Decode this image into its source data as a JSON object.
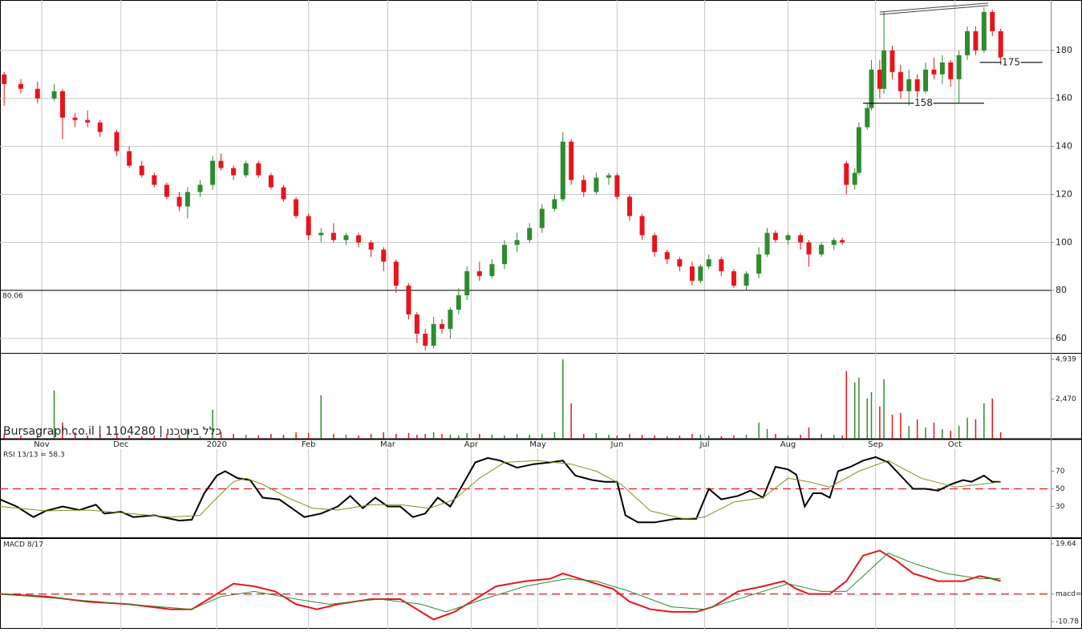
{
  "chart_data": {
    "type": "candlestick",
    "watermark": "Bursagraph.co.il | 1104280 | כלל ביוטכנו",
    "xlim": [
      -1,
      251
    ],
    "xticks": [
      {
        "value": 9,
        "label": "Nov"
      },
      {
        "value": 28,
        "label": "Dec"
      },
      {
        "value": 51,
        "label": "2020"
      },
      {
        "value": 73,
        "label": "Feb"
      },
      {
        "value": 92,
        "label": "Mar"
      },
      {
        "value": 112,
        "label": "Apr"
      },
      {
        "value": 128,
        "label": "May"
      },
      {
        "value": 147,
        "label": "Jun"
      },
      {
        "value": 168,
        "label": "Jul"
      },
      {
        "value": 188,
        "label": "Aug"
      },
      {
        "value": 209,
        "label": "Sep"
      },
      {
        "value": 228,
        "label": "Oct"
      }
    ],
    "grid": true,
    "price": {
      "ylim": [
        54,
        201
      ],
      "yticks": [
        60,
        80,
        100,
        120,
        140,
        160,
        180
      ],
      "up_color": "#2e8b2e",
      "down_color": "#e8141c",
      "reference_line": 80.06,
      "support_lines": [
        {
          "value": 158,
          "x": [
            206,
            235
          ]
        },
        {
          "value": 175,
          "x": [
            234,
            249
          ]
        }
      ],
      "trend_line": {
        "x": [
          210,
          236
        ],
        "y": [
          196,
          199.7
        ]
      },
      "candles": {
        "x": [
          0,
          4,
          8,
          12,
          14,
          17,
          20,
          23,
          27,
          30,
          33,
          36,
          39,
          42,
          44,
          47,
          50,
          52,
          55,
          58,
          61,
          64,
          67,
          70,
          73,
          76,
          79,
          82,
          85,
          88,
          91,
          94,
          97,
          99,
          101,
          103,
          105,
          107,
          109,
          111,
          114,
          117,
          120,
          123,
          126,
          129,
          132,
          134,
          136,
          139,
          142,
          145,
          147,
          150,
          153,
          156,
          159,
          162,
          165,
          167,
          169,
          172,
          175,
          178,
          181,
          183,
          185,
          188,
          191,
          193,
          196,
          199,
          201,
          202,
          204,
          205,
          207,
          208,
          210,
          211,
          213,
          215,
          217,
          219,
          221,
          223,
          225,
          227,
          229,
          231,
          233,
          235,
          237,
          239
        ],
        "open": [
          170,
          166,
          164,
          160,
          163,
          152,
          151,
          150,
          146,
          138,
          132,
          128,
          124,
          119,
          115,
          121,
          124,
          134,
          131,
          128,
          133,
          128,
          123,
          118,
          111,
          103,
          104,
          101,
          103,
          100,
          97,
          92,
          82,
          70,
          62,
          57,
          66,
          64,
          72,
          78,
          88,
          86,
          91,
          99,
          101,
          106,
          114,
          118,
          142,
          126,
          121,
          127,
          128,
          119,
          111,
          103,
          96,
          93,
          90,
          84,
          90,
          93,
          88,
          82,
          87,
          95,
          104,
          101,
          103,
          100,
          95,
          99,
          101,
          133,
          124,
          129,
          148,
          156,
          172,
          164,
          180,
          171,
          163,
          168,
          163,
          172,
          170,
          175,
          168,
          178,
          188,
          180,
          196,
          188
        ],
        "high": [
          171,
          168,
          167,
          166,
          164,
          154,
          155,
          151,
          147,
          140,
          134,
          129,
          125,
          121,
          123,
          126,
          136,
          137,
          132,
          134,
          134,
          129,
          124,
          119,
          112,
          106,
          108,
          104,
          104,
          101,
          98,
          93,
          83,
          71,
          64,
          69,
          68,
          73,
          81,
          90,
          92,
          93,
          101,
          104,
          108,
          116,
          120,
          146,
          143,
          128,
          129,
          129,
          129,
          120,
          112,
          104,
          97,
          94,
          92,
          91,
          95,
          94,
          89,
          88,
          98,
          106,
          105,
          104,
          104,
          101,
          100,
          102,
          102,
          134,
          131,
          150,
          158,
          176,
          176,
          196,
          182,
          174,
          172,
          170,
          175,
          177,
          178,
          176,
          180,
          190,
          190,
          198,
          197,
          189
        ],
        "low": [
          157,
          162,
          158,
          159,
          143,
          148,
          148,
          144,
          136,
          131,
          127,
          123,
          118,
          113,
          110,
          119,
          122,
          130,
          126,
          127,
          127,
          122,
          117,
          110,
          101,
          100,
          100,
          99,
          98,
          94,
          88,
          79,
          68,
          58,
          55,
          56,
          62,
          60,
          70,
          76,
          84,
          85,
          89,
          96,
          100,
          104,
          113,
          117,
          124,
          119,
          120,
          124,
          118,
          109,
          101,
          94,
          91,
          88,
          82,
          83,
          89,
          86,
          81,
          80,
          85,
          94,
          100,
          99,
          97,
          90,
          94,
          97,
          99,
          120,
          122,
          128,
          147,
          155,
          160,
          162,
          168,
          160,
          157,
          160,
          162,
          168,
          166,
          165,
          158,
          176,
          178,
          179,
          186,
          174
        ],
        "close": [
          166,
          164,
          160,
          163,
          152,
          151,
          150,
          146,
          138,
          132,
          128,
          124,
          119,
          115,
          121,
          124,
          134,
          131,
          128,
          133,
          128,
          123,
          118,
          111,
          103,
          104,
          101,
          103,
          100,
          97,
          92,
          82,
          70,
          62,
          57,
          66,
          64,
          72,
          78,
          88,
          86,
          91,
          99,
          101,
          106,
          114,
          118,
          142,
          126,
          121,
          127,
          128,
          119,
          111,
          103,
          96,
          93,
          90,
          84,
          90,
          93,
          88,
          82,
          87,
          95,
          104,
          101,
          103,
          100,
          95,
          99,
          101,
          100,
          124,
          129,
          148,
          156,
          172,
          164,
          180,
          171,
          163,
          168,
          163,
          172,
          170,
          175,
          168,
          178,
          188,
          180,
          196,
          188,
          177
        ]
      }
    },
    "volume": {
      "ylim": [
        0,
        5338
      ],
      "yticks": [
        {
          "value": 2470,
          "label": "2,470"
        },
        {
          "value": 4939,
          "label": "4,939"
        }
      ],
      "values": [
        300,
        200,
        250,
        3000,
        1000,
        400,
        200,
        300,
        250,
        200,
        150,
        200,
        300,
        250,
        600,
        150,
        1800,
        400,
        300,
        250,
        200,
        300,
        250,
        400,
        350,
        2700,
        300,
        250,
        200,
        300,
        400,
        300,
        350,
        250,
        300,
        400,
        300,
        250,
        200,
        350,
        300,
        250,
        200,
        300,
        250,
        300,
        400,
        4939,
        2200,
        300,
        350,
        250,
        200,
        300,
        250,
        200,
        150,
        200,
        300,
        250,
        200,
        150,
        200,
        250,
        1000,
        600,
        300,
        200,
        250,
        700,
        300,
        250,
        200,
        4200,
        3500,
        3800,
        2500,
        2900,
        2000,
        3700,
        1500,
        1600,
        800,
        1200,
        700,
        1000,
        600,
        500,
        800,
        1300,
        1200,
        2200,
        2500,
        400
      ]
    },
    "rsi": {
      "title": "RSI 13/13 = 58.3",
      "ylim": [
        -5,
        95
      ],
      "yticks": [
        30,
        50,
        70
      ],
      "reference": 50,
      "series": [
        {
          "color": "#000000",
          "x": [
            -1,
            3,
            7,
            10,
            14,
            18,
            22,
            24,
            28,
            31,
            36,
            42,
            45,
            48,
            51,
            53,
            56,
            59,
            62,
            66,
            69,
            72,
            76,
            80,
            83,
            86,
            89,
            92,
            95,
            98,
            101,
            104,
            107,
            110,
            113,
            116,
            119,
            123,
            127,
            131,
            134,
            137,
            141,
            144,
            147,
            149,
            152,
            156,
            161,
            166,
            169,
            172,
            176,
            179,
            182,
            185,
            188,
            190,
            192,
            194,
            196,
            198,
            200,
            203,
            206,
            209,
            212,
            215,
            218,
            221,
            224,
            227,
            230,
            232,
            235,
            237,
            239
          ],
          "values": [
            38,
            30,
            18,
            25,
            30,
            26,
            32,
            22,
            24,
            18,
            20,
            14,
            15,
            45,
            65,
            70,
            62,
            60,
            40,
            38,
            28,
            18,
            22,
            30,
            42,
            28,
            40,
            30,
            30,
            18,
            22,
            40,
            30,
            55,
            80,
            85,
            82,
            74,
            78,
            80,
            82,
            65,
            60,
            58,
            58,
            20,
            12,
            12,
            16,
            16,
            50,
            38,
            42,
            48,
            40,
            75,
            72,
            66,
            30,
            45,
            45,
            40,
            70,
            75,
            82,
            86,
            80,
            65,
            50,
            50,
            48,
            55,
            60,
            58,
            65,
            58,
            58
          ]
        },
        {
          "color": "#8b8b1e",
          "x": [
            -1,
            10,
            20,
            30,
            40,
            47,
            50,
            55,
            58,
            62,
            68,
            74,
            80,
            88,
            95,
            102,
            108,
            114,
            120,
            128,
            136,
            142,
            148,
            155,
            163,
            168,
            175,
            182,
            188,
            193,
            198,
            205,
            212,
            220,
            228,
            234,
            239
          ],
          "values": [
            30,
            25,
            26,
            22,
            18,
            20,
            35,
            58,
            62,
            55,
            40,
            28,
            26,
            32,
            32,
            28,
            38,
            62,
            80,
            82,
            78,
            70,
            55,
            25,
            16,
            18,
            35,
            40,
            62,
            58,
            52,
            70,
            82,
            62,
            52,
            55,
            58
          ]
        }
      ]
    },
    "macd": {
      "title": "MACD 8/17",
      "ylim": [
        -13.6,
        21.5
      ],
      "yticks": [
        -10.78,
        {
          "value": 0,
          "label": "macd=0"
        },
        19.64
      ],
      "reference": 0,
      "series": [
        {
          "color": "#e8141c",
          "x": [
            -1,
            10,
            20,
            30,
            40,
            45,
            50,
            55,
            60,
            65,
            70,
            75,
            80,
            88,
            95,
            100,
            103,
            108,
            112,
            118,
            125,
            131,
            134,
            140,
            146,
            150,
            155,
            160,
            166,
            170,
            176,
            182,
            187,
            190,
            193,
            198,
            202,
            206,
            210,
            214,
            218,
            224,
            230,
            234,
            237,
            239
          ],
          "values": [
            0,
            -1,
            -3,
            -4,
            -6,
            -6,
            -1,
            4,
            3,
            1,
            -4,
            -6,
            -4,
            -2,
            -2,
            -7,
            -10,
            -7,
            -3,
            3,
            5,
            6,
            8,
            5,
            2,
            -3,
            -6,
            -7,
            -7,
            -5,
            1,
            3,
            5,
            2,
            0,
            0,
            5,
            15,
            17,
            13,
            8,
            5,
            5,
            7,
            6,
            5
          ]
        },
        {
          "color": "#2e8b2e",
          "x": [
            -1,
            15,
            30,
            45,
            52,
            60,
            70,
            78,
            90,
            100,
            106,
            115,
            125,
            135,
            142,
            150,
            160,
            168,
            178,
            188,
            196,
            202,
            208,
            212,
            218,
            226,
            234,
            239
          ],
          "values": [
            0,
            -2,
            -4,
            -6,
            -1,
            1,
            -2,
            -4,
            -2,
            -4,
            -7,
            -2,
            3,
            6,
            5,
            1,
            -5,
            -6,
            -1,
            4,
            1,
            1,
            10,
            16,
            12,
            8,
            6,
            6
          ]
        }
      ]
    }
  }
}
